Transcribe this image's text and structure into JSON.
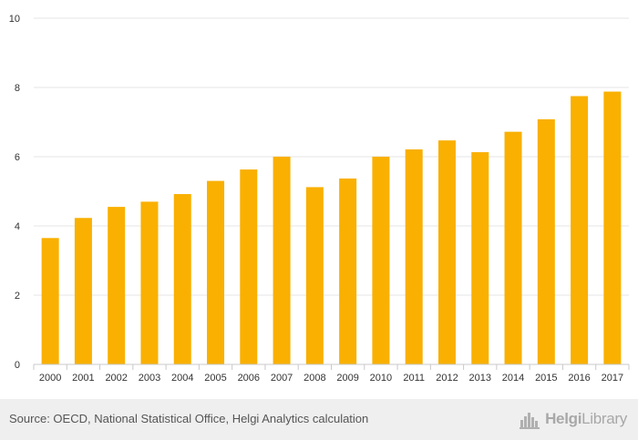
{
  "chart_data": {
    "type": "bar",
    "categories": [
      "2000",
      "2001",
      "2002",
      "2003",
      "2004",
      "2005",
      "2006",
      "2007",
      "2008",
      "2009",
      "2010",
      "2011",
      "2012",
      "2013",
      "2014",
      "2015",
      "2016",
      "2017"
    ],
    "values": [
      3.65,
      4.23,
      4.55,
      4.7,
      4.92,
      5.3,
      5.63,
      6.0,
      5.12,
      5.37,
      6.0,
      6.21,
      6.47,
      6.13,
      6.72,
      7.08,
      7.75,
      7.88
    ],
    "title": "",
    "xlabel": "",
    "ylabel": "",
    "ylim": [
      0,
      10
    ],
    "yticks": [
      "0",
      "2",
      "4",
      "6",
      "8",
      "10"
    ],
    "bar_color": "#f9b000",
    "grid": true,
    "legend": "none"
  },
  "footer": {
    "source": "Source: OECD, National Statistical Office, Helgi Analytics calculation",
    "logo_helgi": "Helgi",
    "logo_library": "Library",
    "logo_icon": "helgi-library-logo-icon"
  },
  "colors": {
    "bar": "#f9b000",
    "grid": "#e6e6e6",
    "axis": "#c8c8c8",
    "footer_bg": "#efefef"
  }
}
